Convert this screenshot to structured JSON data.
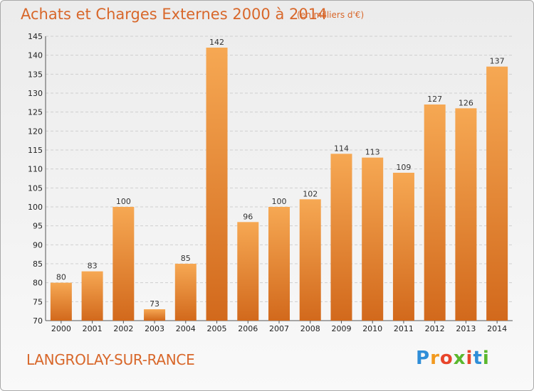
{
  "header": {
    "title": "Achats et Charges Externes 2000 à 2014",
    "unit": "(en milliers d'€)"
  },
  "footer": {
    "place": "LANGROLAY-SUR-RANCE",
    "logo_letters": [
      "P",
      "r",
      "o",
      "x",
      "i",
      "t",
      "i"
    ],
    "logo_colors": [
      "#2f8ed8",
      "#f29a1f",
      "#e8452b",
      "#5bb82e",
      "#e8452b",
      "#2f8ed8",
      "#5bb82e"
    ]
  },
  "chart_data": {
    "type": "bar",
    "title": "Achats et Charges Externes 2000 à 2014",
    "subtitle": "(en milliers d'€)",
    "categories": [
      "2000",
      "2001",
      "2002",
      "2003",
      "2004",
      "2005",
      "2006",
      "2007",
      "2008",
      "2009",
      "2010",
      "2011",
      "2012",
      "2013",
      "2014"
    ],
    "values": [
      80,
      83,
      100,
      73,
      85,
      142,
      96,
      100,
      102,
      114,
      113,
      109,
      127,
      126,
      137
    ],
    "ylim": [
      70,
      145
    ],
    "yticks": [
      70,
      75,
      80,
      85,
      90,
      95,
      100,
      105,
      110,
      115,
      120,
      125,
      130,
      135,
      140,
      145
    ],
    "grid": true,
    "bar_color_top": "#f6a853",
    "bar_color_bottom": "#d2691c"
  }
}
